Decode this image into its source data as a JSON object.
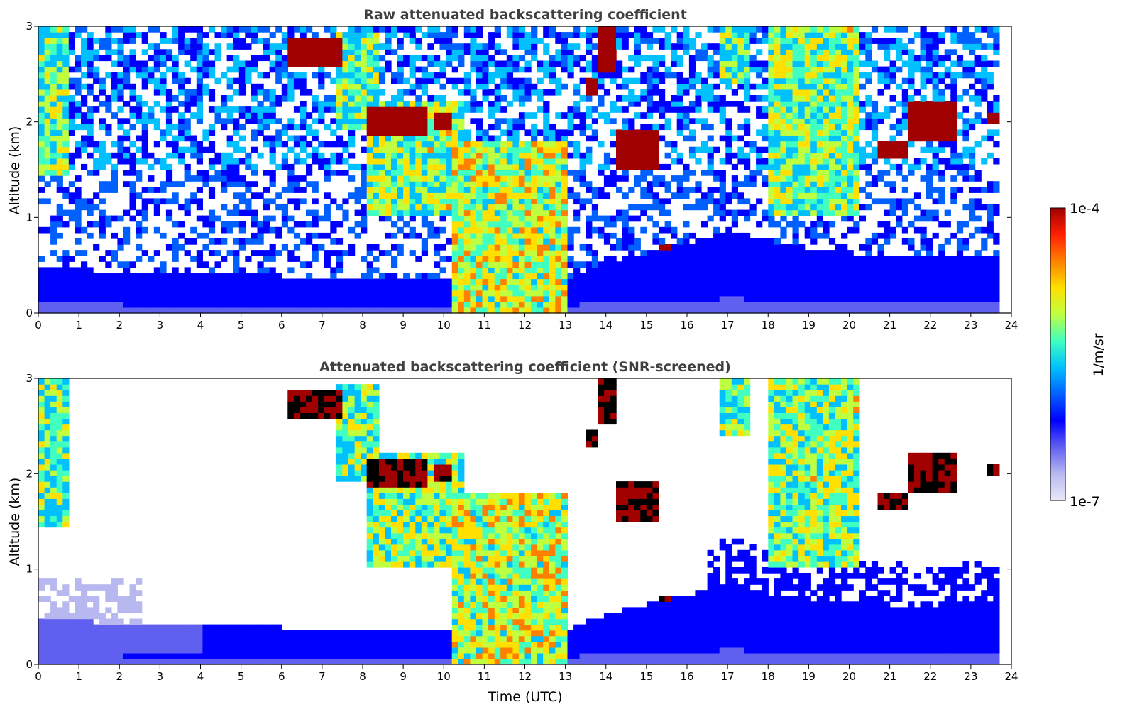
{
  "chart_data": [
    {
      "type": "heatmap",
      "title": "Raw attenuated backscattering coefficient",
      "xlabel": "",
      "ylabel": "Altitude (km)",
      "xlim": [
        0,
        24
      ],
      "ylim": [
        0,
        3
      ],
      "x_ticks": [
        "0",
        "1",
        "2",
        "3",
        "4",
        "5",
        "6",
        "7",
        "8",
        "9",
        "10",
        "11",
        "12",
        "13",
        "14",
        "15",
        "16",
        "17",
        "18",
        "19",
        "20",
        "21",
        "22",
        "23",
        "24"
      ],
      "y_ticks": [
        "0",
        "1",
        "2",
        "3"
      ],
      "data_end_time": 23.65,
      "boundary_layer_top_km": [
        [
          0,
          0.45
        ],
        [
          2,
          0.4
        ],
        [
          4,
          0.38
        ],
        [
          6,
          0.36
        ],
        [
          8,
          0.35
        ],
        [
          10,
          0.34
        ],
        [
          10.5,
          0.35
        ],
        [
          13,
          0.35
        ],
        [
          14,
          0.5
        ],
        [
          16,
          0.7
        ],
        [
          17,
          0.85
        ],
        [
          18,
          0.7
        ],
        [
          20,
          0.6
        ],
        [
          22,
          0.55
        ],
        [
          23.65,
          0.6
        ]
      ],
      "aerosol_features": [
        {
          "t0": 0,
          "t1": 0.6,
          "z0": 1.4,
          "z1": 3.0,
          "level": 0.55
        },
        {
          "t0": 7.3,
          "t1": 8.4,
          "z0": 1.9,
          "z1": 2.9,
          "level": 0.55
        },
        {
          "t0": 8.0,
          "t1": 10.5,
          "z0": 1.0,
          "z1": 2.2,
          "level": 0.6
        },
        {
          "t0": 10.2,
          "t1": 13.0,
          "z0": 0.0,
          "z1": 1.8,
          "level": 0.65
        },
        {
          "t0": 16.8,
          "t1": 17.5,
          "z0": 2.4,
          "z1": 3.0,
          "level": 0.55
        },
        {
          "t0": 17.9,
          "t1": 20.2,
          "z0": 1.0,
          "z1": 3.0,
          "level": 0.6
        }
      ],
      "cloud_features": [
        {
          "t0": 6.1,
          "t1": 7.4,
          "z0": 2.55,
          "z1": 2.85
        },
        {
          "t0": 8.1,
          "t1": 9.6,
          "z0": 1.85,
          "z1": 2.15
        },
        {
          "t0": 9.7,
          "t1": 10.1,
          "z0": 1.9,
          "z1": 2.05
        },
        {
          "t0": 13.4,
          "t1": 13.8,
          "z0": 2.25,
          "z1": 2.45
        },
        {
          "t0": 13.8,
          "t1": 14.2,
          "z0": 2.5,
          "z1": 3.0
        },
        {
          "t0": 14.2,
          "t1": 15.3,
          "z0": 1.5,
          "z1": 1.9
        },
        {
          "t0": 15.3,
          "t1": 15.6,
          "z0": 0.62,
          "z1": 0.72
        },
        {
          "t0": 20.6,
          "t1": 21.3,
          "z0": 1.6,
          "z1": 1.8
        },
        {
          "t0": 21.3,
          "t1": 22.6,
          "z0": 1.8,
          "z1": 2.2
        },
        {
          "t0": 23.3,
          "t1": 23.65,
          "z0": 1.95,
          "z1": 2.1
        }
      ]
    },
    {
      "type": "heatmap",
      "title": "Attenuated backscattering coefficient (SNR-screened)",
      "xlabel": "Time (UTC)",
      "ylabel": "Altitude (km)",
      "xlim": [
        0,
        24
      ],
      "ylim": [
        0,
        3
      ],
      "x_ticks": [
        "0",
        "1",
        "2",
        "3",
        "4",
        "5",
        "6",
        "7",
        "8",
        "9",
        "10",
        "11",
        "12",
        "13",
        "14",
        "15",
        "16",
        "17",
        "18",
        "19",
        "20",
        "21",
        "22",
        "23",
        "24"
      ],
      "y_ticks": [
        "0",
        "1",
        "2",
        "3"
      ],
      "screened": true
    }
  ],
  "colorbar": {
    "label": "1/m/sr",
    "max_label": "1e-4",
    "min_label": "1e-7",
    "colormap": "jet with light lavender low end",
    "colors": [
      "#e8e8f8",
      "#b8b8f0",
      "#6060f0",
      "#0000ff",
      "#0060ff",
      "#00c0ff",
      "#40ffc0",
      "#c0ff40",
      "#ffe000",
      "#ff8000",
      "#ff2000",
      "#a00000"
    ]
  }
}
